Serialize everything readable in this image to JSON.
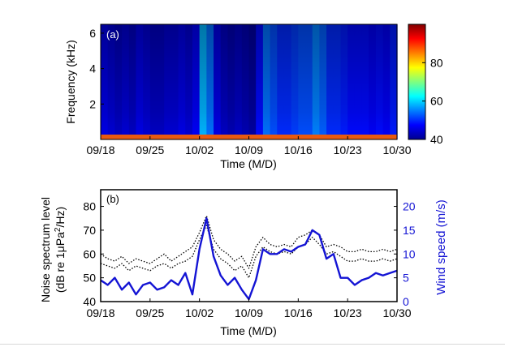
{
  "chart_data": [
    {
      "panel": "(a)",
      "type": "heatmap",
      "xlabel": "Time (M/D)",
      "ylabel": "Frequency (kHz)",
      "x_ticks": [
        "09/18",
        "09/25",
        "10/02",
        "10/09",
        "10/16",
        "10/23",
        "10/30"
      ],
      "y_ticks": [
        2,
        4,
        6
      ],
      "ylim": [
        0,
        6.5
      ],
      "colorbar": {
        "ticks": [
          40,
          60,
          80
        ],
        "range": [
          40,
          100
        ],
        "colormap": "jet"
      },
      "xlim": [
        "09/18",
        "10/30"
      ],
      "band_levels": {
        "dates": [
          "09/18",
          "09/19",
          "09/20",
          "09/21",
          "09/22",
          "09/23",
          "09/24",
          "09/25",
          "09/26",
          "09/27",
          "09/28",
          "09/29",
          "09/30",
          "10/01",
          "10/02",
          "10/03",
          "10/04",
          "10/05",
          "10/06",
          "10/07",
          "10/08",
          "10/09",
          "10/10",
          "10/11",
          "10/12",
          "10/13",
          "10/14",
          "10/15",
          "10/16",
          "10/17",
          "10/18",
          "10/19",
          "10/20",
          "10/21",
          "10/22",
          "10/23",
          "10/24",
          "10/25",
          "10/26",
          "10/27",
          "10/28",
          "10/29",
          "10/30"
        ],
        "level_db": [
          46,
          45,
          44,
          45,
          44,
          46,
          45,
          44,
          44,
          45,
          45,
          46,
          45,
          47,
          58,
          54,
          46,
          44,
          43,
          44,
          43,
          42,
          48,
          54,
          52,
          50,
          50,
          51,
          52,
          52,
          55,
          53,
          50,
          50,
          49,
          48,
          48,
          48,
          47,
          48,
          47,
          49,
          50
        ]
      }
    },
    {
      "panel": "(b)",
      "type": "line",
      "xlabel": "Time (M/D)",
      "ylabel": "Noise spectrum level (dB re 1μPa²/Hz)",
      "ylabel_line1": "Noise spectrum level",
      "ylabel_line2_prefix": "(dB re 1",
      "ylabel_line2_mu": "μ",
      "ylabel_line2_mid": "Pa",
      "ylabel_line2_sup": "2",
      "ylabel_line2_suffix": "/Hz)",
      "y2label": "Wind speed (m/s)",
      "x_ticks": [
        "09/18",
        "09/25",
        "10/02",
        "10/09",
        "10/16",
        "10/23",
        "10/30"
      ],
      "y_ticks": [
        40,
        50,
        60,
        70,
        80
      ],
      "y2_ticks": [
        0,
        5,
        10,
        15,
        20
      ],
      "ylim": [
        40,
        87
      ],
      "y2lim": [
        0,
        23.5
      ],
      "xlim": [
        "09/18",
        "10/30"
      ],
      "series": [
        {
          "axis": "left",
          "style": "dotted",
          "color": "#000000",
          "dates": [
            "09/18",
            "09/19",
            "09/20",
            "09/21",
            "09/22",
            "09/23",
            "09/24",
            "09/25",
            "09/26",
            "09/27",
            "09/28",
            "09/29",
            "09/30",
            "10/01",
            "10/02",
            "10/03",
            "10/04",
            "10/05",
            "10/06",
            "10/07",
            "10/08",
            "10/09",
            "10/10",
            "10/11",
            "10/12",
            "10/13",
            "10/14",
            "10/15",
            "10/16",
            "10/17",
            "10/18",
            "10/19",
            "10/20",
            "10/21",
            "10/22",
            "10/23",
            "10/24",
            "10/25",
            "10/26",
            "10/27",
            "10/28",
            "10/29",
            "10/30"
          ],
          "values": [
            60,
            58,
            57,
            59,
            56,
            58,
            57,
            56,
            58,
            60,
            57,
            59,
            61,
            63,
            69,
            76,
            66,
            62,
            60,
            57,
            59,
            54,
            63,
            67,
            64,
            63,
            64,
            63,
            67,
            68,
            70,
            68,
            63,
            64,
            63,
            61,
            61,
            62,
            61,
            61,
            62,
            61,
            62
          ]
        },
        {
          "axis": "left",
          "style": "dotted",
          "color": "#000000",
          "dates": [
            "09/18",
            "09/19",
            "09/20",
            "09/21",
            "09/22",
            "09/23",
            "09/24",
            "09/25",
            "09/26",
            "09/27",
            "09/28",
            "09/29",
            "09/30",
            "10/01",
            "10/02",
            "10/03",
            "10/04",
            "10/05",
            "10/06",
            "10/07",
            "10/08",
            "10/09",
            "10/10",
            "10/11",
            "10/12",
            "10/13",
            "10/14",
            "10/15",
            "10/16",
            "10/17",
            "10/18",
            "10/19",
            "10/20",
            "10/21",
            "10/22",
            "10/23",
            "10/24",
            "10/25",
            "10/26",
            "10/27",
            "10/28",
            "10/29",
            "10/30"
          ],
          "values": [
            56,
            55,
            54,
            56,
            53,
            55,
            54,
            53,
            55,
            56,
            54,
            56,
            57,
            59,
            66,
            72,
            62,
            58,
            56,
            53,
            55,
            50,
            59,
            63,
            61,
            60,
            61,
            60,
            63,
            64,
            67,
            64,
            60,
            61,
            59,
            57,
            57,
            58,
            57,
            57,
            58,
            57,
            58
          ]
        },
        {
          "axis": "right",
          "style": "solid",
          "color": "#1414d4",
          "dates": [
            "09/18",
            "09/19",
            "09/20",
            "09/21",
            "09/22",
            "09/23",
            "09/24",
            "09/25",
            "09/26",
            "09/27",
            "09/28",
            "09/29",
            "09/30",
            "10/01",
            "10/02",
            "10/03",
            "10/04",
            "10/05",
            "10/06",
            "10/07",
            "10/08",
            "10/09",
            "10/10",
            "10/11",
            "10/12",
            "10/13",
            "10/14",
            "10/15",
            "10/16",
            "10/17",
            "10/18",
            "10/19",
            "10/20",
            "10/21",
            "10/22",
            "10/23",
            "10/24",
            "10/25",
            "10/26",
            "10/27",
            "10/28",
            "10/29",
            "10/30"
          ],
          "values": [
            4.5,
            3.5,
            5,
            2.5,
            4,
            1.5,
            3.5,
            4,
            2.5,
            3,
            4.5,
            3.5,
            6,
            1.5,
            11,
            17.5,
            9.5,
            5.5,
            3.5,
            5,
            2.5,
            0.5,
            4.5,
            11,
            10,
            10,
            11,
            10.5,
            11.5,
            12,
            15,
            14,
            9,
            10,
            5,
            5,
            3.5,
            4.5,
            5,
            6,
            5.5,
            6,
            6.5
          ]
        }
      ]
    }
  ]
}
